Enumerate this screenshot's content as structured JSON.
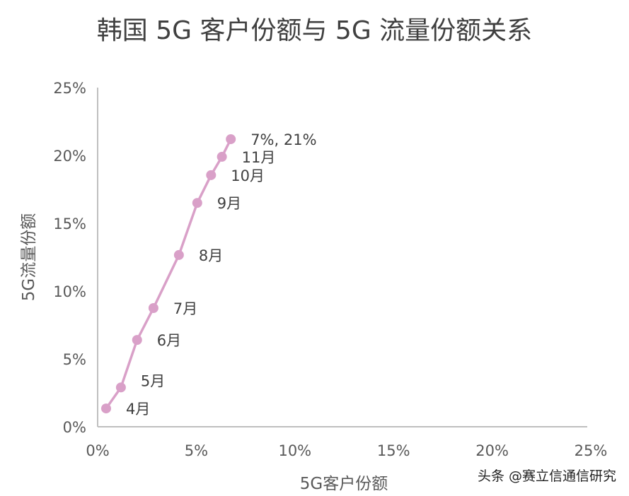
{
  "chart_data": {
    "type": "scatter",
    "title": "韩国 5G 客户份额与 5G 流量份额关系",
    "xlabel": "5G客户份额",
    "ylabel": "5G流量份额",
    "xlim": [
      0,
      25
    ],
    "ylim": [
      0,
      25
    ],
    "xticks": [
      "0%",
      "5%",
      "10%",
      "15%",
      "20%",
      "25%"
    ],
    "yticks": [
      "0%",
      "5%",
      "10%",
      "15%",
      "20%",
      "25%"
    ],
    "grid": false,
    "color": "#d9a0c8",
    "points": [
      {
        "label": "4月",
        "x": 0.43,
        "y": 1.35
      },
      {
        "label": "5月",
        "x": 1.18,
        "y": 2.9
      },
      {
        "label": "6月",
        "x": 2.0,
        "y": 6.4
      },
      {
        "label": "7月",
        "x": 2.83,
        "y": 8.75
      },
      {
        "label": "8月",
        "x": 4.12,
        "y": 12.66
      },
      {
        "label": "9月",
        "x": 5.05,
        "y": 16.5
      },
      {
        "label": "10月",
        "x": 5.75,
        "y": 18.55
      },
      {
        "label": "11月",
        "x": 6.3,
        "y": 19.9
      },
      {
        "label": "7%, 21%",
        "x": 6.75,
        "y": 21.2
      }
    ]
  },
  "watermark": "头条 @赛立信通信研究"
}
